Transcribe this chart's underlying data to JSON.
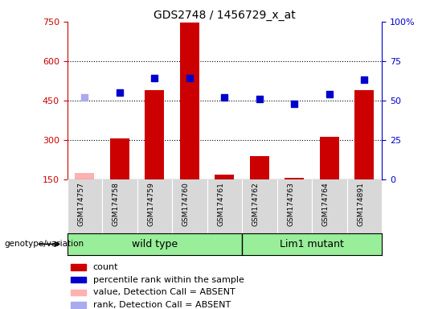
{
  "title": "GDS2748 / 1456729_x_at",
  "samples": [
    "GSM174757",
    "GSM174758",
    "GSM174759",
    "GSM174760",
    "GSM174761",
    "GSM174762",
    "GSM174763",
    "GSM174764",
    "GSM174891"
  ],
  "count_values": [
    175,
    305,
    490,
    748,
    168,
    238,
    155,
    312,
    490
  ],
  "count_absent": [
    true,
    false,
    false,
    false,
    false,
    false,
    false,
    false,
    false
  ],
  "percentile_values": [
    52,
    55,
    64,
    64,
    52,
    51,
    48,
    54,
    63
  ],
  "percentile_absent": [
    true,
    false,
    false,
    false,
    false,
    false,
    false,
    false,
    false
  ],
  "groups": [
    {
      "name": "wild type",
      "start": 0,
      "end": 5
    },
    {
      "name": "Lim1 mutant",
      "start": 5,
      "end": 9
    }
  ],
  "ylim_left": [
    150,
    750
  ],
  "ylim_right": [
    0,
    100
  ],
  "yticks_left": [
    150,
    300,
    450,
    600,
    750
  ],
  "yticks_right": [
    0,
    25,
    50,
    75,
    100
  ],
  "group_label": "genotype/variation",
  "bar_color": "#cc0000",
  "bar_absent_color": "#ffb0b0",
  "dot_color": "#0000cc",
  "dot_absent_color": "#aaaaee",
  "group_bg_color": "#99ee99",
  "grid_color": "black",
  "left_axis_color": "#cc0000",
  "right_axis_color": "#0000cc",
  "legend_items": [
    {
      "label": "count",
      "color": "#cc0000"
    },
    {
      "label": "percentile rank within the sample",
      "color": "#0000cc"
    },
    {
      "label": "value, Detection Call = ABSENT",
      "color": "#ffb0b0"
    },
    {
      "label": "rank, Detection Call = ABSENT",
      "color": "#aaaaee"
    }
  ]
}
